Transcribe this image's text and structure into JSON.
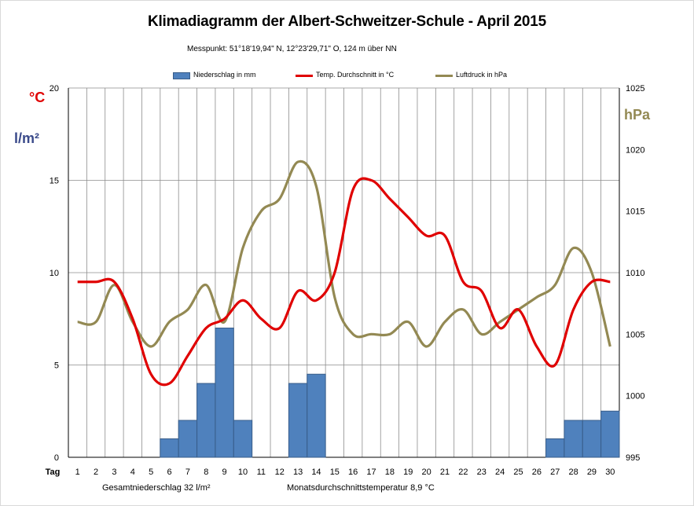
{
  "chart_data": {
    "type": "bar",
    "title": "Klimadiagramm der Albert-Schweitzer-Schule   -   April 2015",
    "subtitle": "Messpunkt:  51°18'19,94\"  N,  12°23'29,71\"  O,  124  m über NN",
    "x_axis_label": "Tag",
    "categories": [
      1,
      2,
      3,
      4,
      5,
      6,
      7,
      8,
      9,
      10,
      11,
      12,
      13,
      14,
      15,
      16,
      17,
      18,
      19,
      20,
      21,
      22,
      23,
      24,
      25,
      26,
      27,
      28,
      29,
      30
    ],
    "left_axis": {
      "units": [
        "°C",
        "l/m²"
      ],
      "ylim": [
        0,
        20
      ],
      "ticks": [
        0,
        5,
        10,
        15,
        20
      ]
    },
    "right_axis": {
      "unit": "hPa",
      "ylim": [
        995,
        1025
      ],
      "ticks": [
        995,
        1000,
        1005,
        1010,
        1015,
        1020,
        1025
      ]
    },
    "grid": "horizontal and vertical",
    "legend_position": "top",
    "series": [
      {
        "name": "Niederschlag in mm",
        "kind": "bar",
        "axis": "left",
        "color": "#4f81bd",
        "values": [
          0,
          0,
          0,
          0,
          0,
          1,
          2,
          4,
          7,
          2,
          0,
          0,
          4,
          4.5,
          0,
          0,
          0,
          0,
          0,
          0,
          0,
          0,
          0,
          0,
          0,
          0,
          1,
          2,
          2,
          2.5
        ]
      },
      {
        "name": "Temp. Durchschnitt in °C",
        "kind": "line",
        "axis": "left",
        "color": "#e00000",
        "values": [
          9.5,
          9.5,
          9.5,
          7.5,
          4.5,
          4,
          5.5,
          7,
          7.5,
          8.5,
          7.5,
          7,
          9,
          8.5,
          10,
          14.5,
          15,
          14,
          13,
          12,
          12,
          9.5,
          9,
          7,
          8,
          6,
          5,
          8,
          9.5,
          9.5
        ]
      },
      {
        "name": "Luftdruck in hPa",
        "kind": "line",
        "axis": "right",
        "color": "#938953",
        "values": [
          1006,
          1006,
          1009,
          1006,
          1004,
          1006,
          1007,
          1009,
          1006,
          1012,
          1015,
          1016,
          1019,
          1017,
          1008,
          1005,
          1005,
          1005,
          1006,
          1004,
          1006,
          1007,
          1005,
          1006,
          1007,
          1008,
          1009,
          1012,
          1010,
          1004
        ]
      }
    ]
  },
  "labels": {
    "unit_c": "°C",
    "unit_l": "l/m²",
    "unit_hpa": "hPa",
    "footer_precip": "Gesamtniederschlag   32      l/m²",
    "footer_temp": "Monatsdurchschnittstemperatur    8,9  °C"
  },
  "colors": {
    "grid": "#8c8c8c",
    "bar_fill": "#4f81bd",
    "bar_stroke": "#385d8a",
    "temp": "#e00000",
    "pressure": "#938953"
  }
}
